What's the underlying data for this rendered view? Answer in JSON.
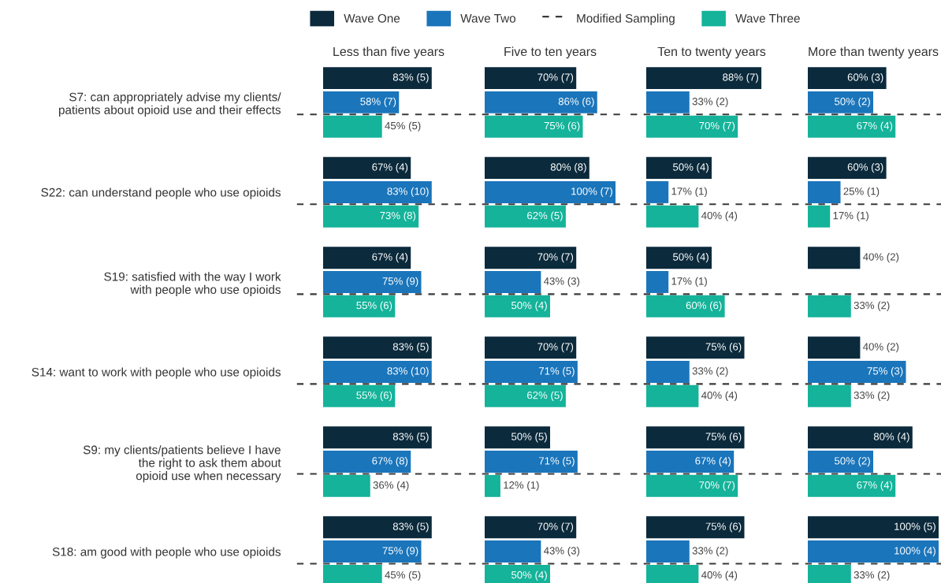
{
  "chart_data": [
    {
      "type": "bar",
      "orientation": "horizontal",
      "title": "Less than five years",
      "legend": "top",
      "tick_labels": "y",
      "categories": [
        "S7: can appropriately advise my clients/\npatients about opioid use and their effects",
        "S22: can understand people who use opioids",
        "S19: satisfied with the way I work\nwith people who use opioids",
        "S14: want to work with people who use opioids",
        "S9: my clients/patients believe I have\nthe right to ask them about\nopioid use when necessary",
        "S18: am good with people who use opioids"
      ],
      "series": [
        {
          "name": "Wave One",
          "color": "#0b2a3c",
          "values": [
            83,
            67,
            67,
            83,
            83,
            83
          ],
          "value_labels": [
            "83% (5)",
            "67% (4)",
            "67% (4)",
            "83% (5)",
            "83% (5)",
            "83% (5)"
          ]
        },
        {
          "name": "Wave Two",
          "color": "#1a75bb",
          "values": [
            58,
            83,
            75,
            83,
            67,
            75
          ],
          "value_labels": [
            "58% (7)",
            "83% (10)",
            "75% (9)",
            "83% (10)",
            "67% (8)",
            "75% (9)"
          ]
        },
        {
          "name": "Wave Three",
          "color": "#14b39a",
          "values": [
            45,
            73,
            55,
            55,
            36,
            45
          ],
          "value_labels": [
            "45% (5)",
            "73% (8)",
            "55% (6)",
            "55% (6)",
            "36% (4)",
            "45% (5)"
          ]
        }
      ],
      "ref_lines": [
        {
          "axis": "y",
          "value": "S7: can appropriately advise my clients/\npatients about opioid use and their effects",
          "label": "Modified Sampling",
          "line_style": "dashed",
          "color": "#3a3a3a"
        },
        {
          "axis": "y",
          "value": "S22: can understand people who use opioids",
          "line_style": "dashed",
          "color": "#3a3a3a"
        },
        {
          "axis": "y",
          "value": "S19: satisfied with the way I work\nwith people who use opioids",
          "line_style": "dashed",
          "color": "#3a3a3a"
        },
        {
          "axis": "y",
          "value": "S14: want to work with people who use opioids",
          "line_style": "dashed",
          "color": "#3a3a3a"
        },
        {
          "axis": "y",
          "value": "S9: my clients/patients believe I have\nthe right to ask them about\nopioid use when necessary",
          "line_style": "dashed",
          "color": "#3a3a3a"
        },
        {
          "axis": "y",
          "value": "S18: am good with people who use opioids",
          "line_style": "dashed",
          "color": "#3a3a3a"
        }
      ]
    },
    {
      "type": "bar",
      "orientation": "horizontal",
      "title": "Five to ten years",
      "tick_labels": false,
      "categories": [
        "S7: can appropriately advise my clients/\npatients about opioid use and their effects",
        "S22: can understand people who use opioids",
        "S19: satisfied with the way I work\nwith people who use opioids",
        "S14: want to work with people who use opioids",
        "S9: my clients/patients believe I have\nthe right to ask them about\nopioid use when necessary",
        "S18: am good with people who use opioids"
      ],
      "series": [
        {
          "color": "#0b2a3c",
          "values": [
            70,
            80,
            70,
            70,
            50,
            70
          ],
          "value_labels": [
            "70% (7)",
            "80% (8)",
            "70% (7)",
            "70% (7)",
            "50% (5)",
            "70% (7)"
          ]
        },
        {
          "color": "#1a75bb",
          "values": [
            86,
            100,
            43,
            71,
            71,
            43
          ],
          "value_labels": [
            "86% (6)",
            "100% (7)",
            "43% (3)",
            "71% (5)",
            "71% (5)",
            "43% (3)"
          ]
        },
        {
          "color": "#14b39a",
          "values": [
            75,
            62,
            50,
            62,
            12,
            50
          ],
          "value_labels": [
            "75% (6)",
            "62% (5)",
            "50% (4)",
            "62% (5)",
            "12% (1)",
            "50% (4)"
          ]
        }
      ],
      "ref_lines": [
        {
          "axis": "y",
          "value": "S7: can appropriately advise my clients/\npatients about opioid use and their effects",
          "line_style": "dashed",
          "color": "#3a3a3a"
        },
        {
          "axis": "y",
          "value": "S22: can understand people who use opioids",
          "line_style": "dashed",
          "color": "#3a3a3a"
        },
        {
          "axis": "y",
          "value": "S19: satisfied with the way I work\nwith people who use opioids",
          "line_style": "dashed",
          "color": "#3a3a3a"
        },
        {
          "axis": "y",
          "value": "S14: want to work with people who use opioids",
          "line_style": "dashed",
          "color": "#3a3a3a"
        },
        {
          "axis": "y",
          "value": "S9: my clients/patients believe I have\nthe right to ask them about\nopioid use when necessary",
          "line_style": "dashed",
          "color": "#3a3a3a"
        },
        {
          "axis": "y",
          "value": "S18: am good with people who use opioids",
          "line_style": "dashed",
          "color": "#3a3a3a"
        }
      ]
    },
    {
      "type": "bar",
      "orientation": "horizontal",
      "title": "Ten to twenty years",
      "tick_labels": false,
      "categories": [
        "S7: can appropriately advise my clients/\npatients about opioid use and their effects",
        "S22: can understand people who use opioids",
        "S19: satisfied with the way I work\nwith people who use opioids",
        "S14: want to work with people who use opioids",
        "S9: my clients/patients believe I have\nthe right to ask them about\nopioid use when necessary",
        "S18: am good with people who use opioids"
      ],
      "series": [
        {
          "color": "#0b2a3c",
          "values": [
            88,
            50,
            50,
            75,
            75,
            75
          ],
          "value_labels": [
            "88% (7)",
            "50% (4)",
            "50% (4)",
            "75% (6)",
            "75% (6)",
            "75% (6)"
          ]
        },
        {
          "color": "#1a75bb",
          "values": [
            33,
            17,
            17,
            33,
            67,
            33
          ],
          "value_labels": [
            "33% (2)",
            "17% (1)",
            "17% (1)",
            "33% (2)",
            "67% (4)",
            "33% (2)"
          ]
        },
        {
          "color": "#14b39a",
          "values": [
            70,
            40,
            60,
            40,
            70,
            40
          ],
          "value_labels": [
            "70% (7)",
            "40% (4)",
            "60% (6)",
            "40% (4)",
            "70% (7)",
            "40% (4)"
          ]
        }
      ],
      "ref_lines": [
        {
          "axis": "y",
          "value": "S7: can appropriately advise my clients/\npatients about opioid use and their effects",
          "line_style": "dashed",
          "color": "#3a3a3a"
        },
        {
          "axis": "y",
          "value": "S22: can understand people who use opioids",
          "line_style": "dashed",
          "color": "#3a3a3a"
        },
        {
          "axis": "y",
          "value": "S19: satisfied with the way I work\nwith people who use opioids",
          "line_style": "dashed",
          "color": "#3a3a3a"
        },
        {
          "axis": "y",
          "value": "S14: want to work with people who use opioids",
          "line_style": "dashed",
          "color": "#3a3a3a"
        },
        {
          "axis": "y",
          "value": "S9: my clients/patients believe I have\nthe right to ask them about\nopioid use when necessary",
          "line_style": "dashed",
          "color": "#3a3a3a"
        },
        {
          "axis": "y",
          "value": "S18: am good with people who use opioids",
          "line_style": "dashed",
          "color": "#3a3a3a"
        }
      ]
    },
    {
      "type": "bar",
      "orientation": "horizontal",
      "title": "More than twenty years",
      "tick_labels": false,
      "categories": [
        "S7: can appropriately advise my clients/\npatients about opioid use and their effects",
        "S22: can understand people who use opioids",
        "S19: satisfied with the way I work\nwith people who use opioids",
        "S14: want to work with people who use opioids",
        "S9: my clients/patients believe I have\nthe right to ask them about\nopioid use when necessary",
        "S18: am good with people who use opioids"
      ],
      "series": [
        {
          "color": "#0b2a3c",
          "values": [
            60,
            60,
            40,
            40,
            80,
            100
          ],
          "value_labels": [
            "60% (3)",
            "60% (3)",
            "40% (2)",
            "40% (2)",
            "80% (4)",
            "100% (5)"
          ]
        },
        {
          "color": "#1a75bb",
          "values": [
            50,
            25,
            null,
            75,
            50,
            100
          ],
          "value_labels": [
            "50% (2)",
            "25% (1)",
            null,
            "75% (3)",
            "50% (2)",
            "100% (4)"
          ]
        },
        {
          "color": "#14b39a",
          "values": [
            67,
            17,
            33,
            33,
            67,
            33
          ],
          "value_labels": [
            "67% (4)",
            "17% (1)",
            "33% (2)",
            "33% (2)",
            "67% (4)",
            "33% (2)"
          ]
        }
      ],
      "ref_lines": [
        {
          "axis": "y",
          "value": "S7: can appropriately advise my clients/\npatients about opioid use and their effects",
          "line_style": "dashed",
          "color": "#3a3a3a"
        },
        {
          "axis": "y",
          "value": "S22: can understand people who use opioids",
          "line_style": "dashed",
          "color": "#3a3a3a"
        },
        {
          "axis": "y",
          "value": "S19: satisfied with the way I work\nwith people who use opioids",
          "line_style": "dashed",
          "color": "#3a3a3a"
        },
        {
          "axis": "y",
          "value": "S14: want to work with people who use opioids",
          "line_style": "dashed",
          "color": "#3a3a3a"
        },
        {
          "axis": "y",
          "value": "S9: my clients/patients believe I have\nthe right to ask them about\nopioid use when necessary",
          "line_style": "dashed",
          "color": "#3a3a3a"
        },
        {
          "axis": "y",
          "value": "S18: am good with people who use opioids",
          "line_style": "dashed",
          "color": "#3a3a3a"
        }
      ]
    }
  ]
}
